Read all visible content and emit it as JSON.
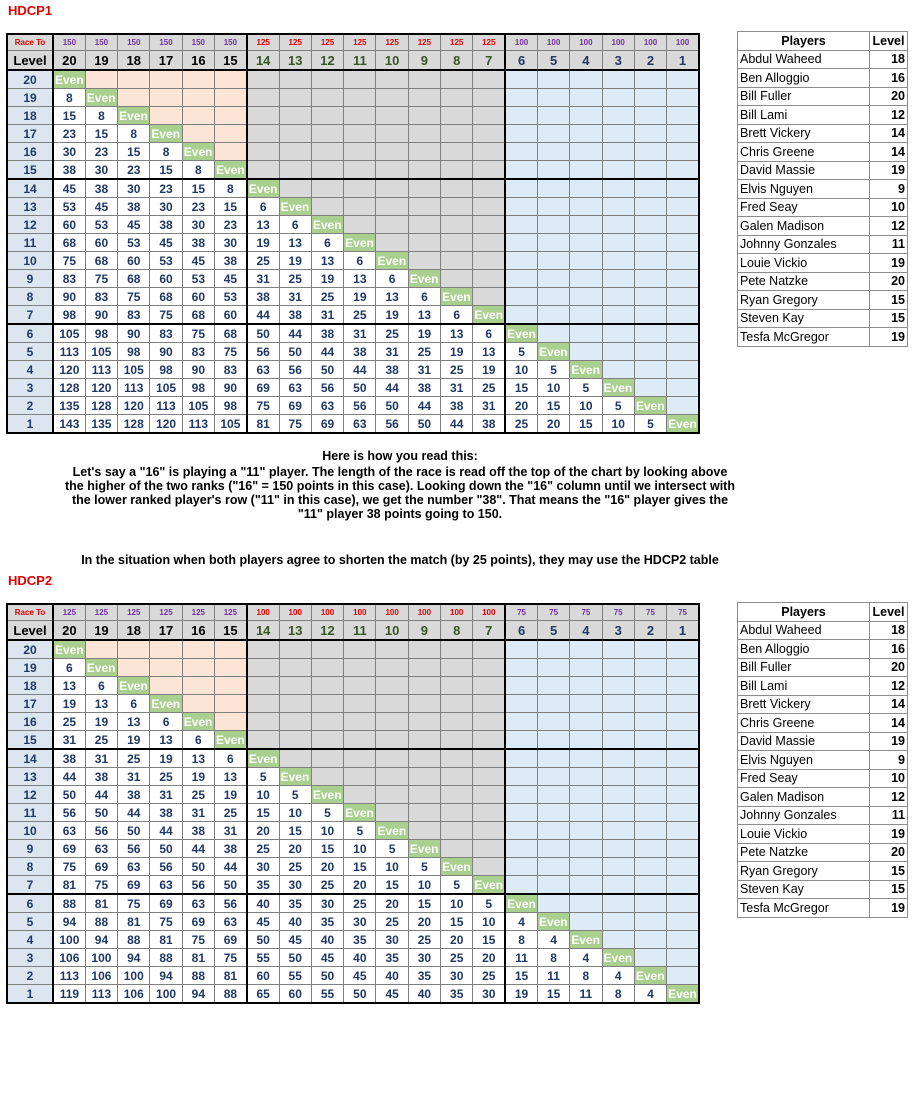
{
  "sections": [
    {
      "title": "HDCP1",
      "race_to_label": "Race To",
      "race_to": [
        150,
        150,
        150,
        150,
        150,
        150,
        125,
        125,
        125,
        125,
        125,
        125,
        125,
        125,
        100,
        100,
        100,
        100,
        100,
        100
      ],
      "level_label": "Level",
      "levels": [
        20,
        19,
        18,
        17,
        16,
        15,
        14,
        13,
        12,
        11,
        10,
        9,
        8,
        7,
        6,
        5,
        4,
        3,
        2,
        1
      ],
      "rows": [
        {
          "level": 20,
          "cells": [
            "Even"
          ]
        },
        {
          "level": 19,
          "cells": [
            8,
            "Even"
          ]
        },
        {
          "level": 18,
          "cells": [
            15,
            8,
            "Even"
          ]
        },
        {
          "level": 17,
          "cells": [
            23,
            15,
            8,
            "Even"
          ]
        },
        {
          "level": 16,
          "cells": [
            30,
            23,
            15,
            8,
            "Even"
          ]
        },
        {
          "level": 15,
          "cells": [
            38,
            30,
            23,
            15,
            8,
            "Even"
          ]
        },
        {
          "level": 14,
          "cells": [
            45,
            38,
            30,
            23,
            15,
            8,
            "Even"
          ]
        },
        {
          "level": 13,
          "cells": [
            53,
            45,
            38,
            30,
            23,
            15,
            6,
            "Even"
          ]
        },
        {
          "level": 12,
          "cells": [
            60,
            53,
            45,
            38,
            30,
            23,
            13,
            6,
            "Even"
          ]
        },
        {
          "level": 11,
          "cells": [
            68,
            60,
            53,
            45,
            38,
            30,
            19,
            13,
            6,
            "Even"
          ]
        },
        {
          "level": 10,
          "cells": [
            75,
            68,
            60,
            53,
            45,
            38,
            25,
            19,
            13,
            6,
            "Even"
          ]
        },
        {
          "level": 9,
          "cells": [
            83,
            75,
            68,
            60,
            53,
            45,
            31,
            25,
            19,
            13,
            6,
            "Even"
          ]
        },
        {
          "level": 8,
          "cells": [
            90,
            83,
            75,
            68,
            60,
            53,
            38,
            31,
            25,
            19,
            13,
            6,
            "Even"
          ]
        },
        {
          "level": 7,
          "cells": [
            98,
            90,
            83,
            75,
            68,
            60,
            44,
            38,
            31,
            25,
            19,
            13,
            6,
            "Even"
          ]
        },
        {
          "level": 6,
          "cells": [
            105,
            98,
            90,
            83,
            75,
            68,
            50,
            44,
            38,
            31,
            25,
            19,
            13,
            6,
            "Even"
          ]
        },
        {
          "level": 5,
          "cells": [
            113,
            105,
            98,
            90,
            83,
            75,
            56,
            50,
            44,
            38,
            31,
            25,
            19,
            13,
            5,
            "Even"
          ]
        },
        {
          "level": 4,
          "cells": [
            120,
            113,
            105,
            98,
            90,
            83,
            63,
            56,
            50,
            44,
            38,
            31,
            25,
            19,
            10,
            5,
            "Even"
          ]
        },
        {
          "level": 3,
          "cells": [
            128,
            120,
            113,
            105,
            98,
            90,
            69,
            63,
            56,
            50,
            44,
            38,
            31,
            25,
            15,
            10,
            5,
            "Even"
          ]
        },
        {
          "level": 2,
          "cells": [
            135,
            128,
            120,
            113,
            105,
            98,
            75,
            69,
            63,
            56,
            50,
            44,
            38,
            31,
            20,
            15,
            10,
            5,
            "Even"
          ]
        },
        {
          "level": 1,
          "cells": [
            143,
            135,
            128,
            120,
            113,
            105,
            81,
            75,
            69,
            63,
            56,
            50,
            44,
            38,
            25,
            20,
            15,
            10,
            5,
            "Even"
          ]
        }
      ],
      "players_header": [
        "Players",
        "Level"
      ],
      "players": [
        [
          "Abdul Waheed",
          18
        ],
        [
          "Ben Alloggio",
          16
        ],
        [
          "Bill Fuller",
          20
        ],
        [
          "Bill Lami",
          12
        ],
        [
          "Brett Vickery",
          14
        ],
        [
          "Chris Greene",
          14
        ],
        [
          "David Massie",
          19
        ],
        [
          "Elvis Nguyen",
          9
        ],
        [
          "Fred Seay",
          10
        ],
        [
          "Galen Madison",
          12
        ],
        [
          "Johnny Gonzales",
          11
        ],
        [
          "Louie Vickio",
          19
        ],
        [
          "Pete Natzke",
          20
        ],
        [
          "Ryan Gregory",
          15
        ],
        [
          "Steven Kay",
          15
        ],
        [
          "Tesfa McGregor",
          19
        ]
      ]
    },
    {
      "title": "HDCP2",
      "race_to_label": "Race To",
      "race_to": [
        125,
        125,
        125,
        125,
        125,
        125,
        100,
        100,
        100,
        100,
        100,
        100,
        100,
        100,
        75,
        75,
        75,
        75,
        75,
        75
      ],
      "level_label": "Level",
      "levels": [
        20,
        19,
        18,
        17,
        16,
        15,
        14,
        13,
        12,
        11,
        10,
        9,
        8,
        7,
        6,
        5,
        4,
        3,
        2,
        1
      ],
      "rows": [
        {
          "level": 20,
          "cells": [
            "Even"
          ]
        },
        {
          "level": 19,
          "cells": [
            6,
            "Even"
          ]
        },
        {
          "level": 18,
          "cells": [
            13,
            6,
            "Even"
          ]
        },
        {
          "level": 17,
          "cells": [
            19,
            13,
            6,
            "Even"
          ]
        },
        {
          "level": 16,
          "cells": [
            25,
            19,
            13,
            6,
            "Even"
          ]
        },
        {
          "level": 15,
          "cells": [
            31,
            25,
            19,
            13,
            6,
            "Even"
          ]
        },
        {
          "level": 14,
          "cells": [
            38,
            31,
            25,
            19,
            13,
            6,
            "Even"
          ]
        },
        {
          "level": 13,
          "cells": [
            44,
            38,
            31,
            25,
            19,
            13,
            5,
            "Even"
          ]
        },
        {
          "level": 12,
          "cells": [
            50,
            44,
            38,
            31,
            25,
            19,
            10,
            5,
            "Even"
          ]
        },
        {
          "level": 11,
          "cells": [
            56,
            50,
            44,
            38,
            31,
            25,
            15,
            10,
            5,
            "Even"
          ]
        },
        {
          "level": 10,
          "cells": [
            63,
            56,
            50,
            44,
            38,
            31,
            20,
            15,
            10,
            5,
            "Even"
          ]
        },
        {
          "level": 9,
          "cells": [
            69,
            63,
            56,
            50,
            44,
            38,
            25,
            20,
            15,
            10,
            5,
            "Even"
          ]
        },
        {
          "level": 8,
          "cells": [
            75,
            69,
            63,
            56,
            50,
            44,
            30,
            25,
            20,
            15,
            10,
            5,
            "Even"
          ]
        },
        {
          "level": 7,
          "cells": [
            81,
            75,
            69,
            63,
            56,
            50,
            35,
            30,
            25,
            20,
            15,
            10,
            5,
            "Even"
          ]
        },
        {
          "level": 6,
          "cells": [
            88,
            81,
            75,
            69,
            63,
            56,
            40,
            35,
            30,
            25,
            20,
            15,
            10,
            5,
            "Even"
          ]
        },
        {
          "level": 5,
          "cells": [
            94,
            88,
            81,
            75,
            69,
            63,
            45,
            40,
            35,
            30,
            25,
            20,
            15,
            10,
            4,
            "Even"
          ]
        },
        {
          "level": 4,
          "cells": [
            100,
            94,
            88,
            81,
            75,
            69,
            50,
            45,
            40,
            35,
            30,
            25,
            20,
            15,
            8,
            4,
            "Even"
          ]
        },
        {
          "level": 3,
          "cells": [
            106,
            100,
            94,
            88,
            81,
            75,
            55,
            50,
            45,
            40,
            35,
            30,
            25,
            20,
            11,
            8,
            4,
            "Even"
          ]
        },
        {
          "level": 2,
          "cells": [
            113,
            106,
            100,
            94,
            88,
            81,
            60,
            55,
            50,
            45,
            40,
            35,
            30,
            25,
            15,
            11,
            8,
            4,
            "Even"
          ]
        },
        {
          "level": 1,
          "cells": [
            119,
            113,
            106,
            100,
            94,
            88,
            65,
            60,
            55,
            50,
            45,
            40,
            35,
            30,
            19,
            15,
            11,
            8,
            4,
            "Even"
          ]
        }
      ],
      "players_header": [
        "Players",
        "Level"
      ],
      "players": [
        [
          "Abdul Waheed",
          18
        ],
        [
          "Ben Alloggio",
          16
        ],
        [
          "Bill Fuller",
          20
        ],
        [
          "Bill Lami",
          12
        ],
        [
          "Brett Vickery",
          14
        ],
        [
          "Chris Greene",
          14
        ],
        [
          "David Massie",
          19
        ],
        [
          "Elvis Nguyen",
          9
        ],
        [
          "Fred Seay",
          10
        ],
        [
          "Galen Madison",
          12
        ],
        [
          "Johnny Gonzales",
          11
        ],
        [
          "Louie Vickio",
          19
        ],
        [
          "Pete Natzke",
          20
        ],
        [
          "Ryan Gregory",
          15
        ],
        [
          "Steven Kay",
          15
        ],
        [
          "Tesfa McGregor",
          19
        ]
      ]
    }
  ],
  "explanation": {
    "heading": "Here is how you read this:",
    "lines": [
      "Let's say a \"16\" is playing a \"11\" player. The length of the race is read off the top of the chart by looking above",
      "the higher of the two ranks (\"16\" = 150 points in this case). Looking down the \"16\" column until we intersect with",
      "the lower ranked player's row (\"11\" in this case), we get the number \"38\". That means the \"16\" player gives the",
      "\"11\" player 38 points going to 150."
    ],
    "note": "In the situation when both players agree to shorten the match (by 25 points), they may use the HDCP2 table"
  }
}
